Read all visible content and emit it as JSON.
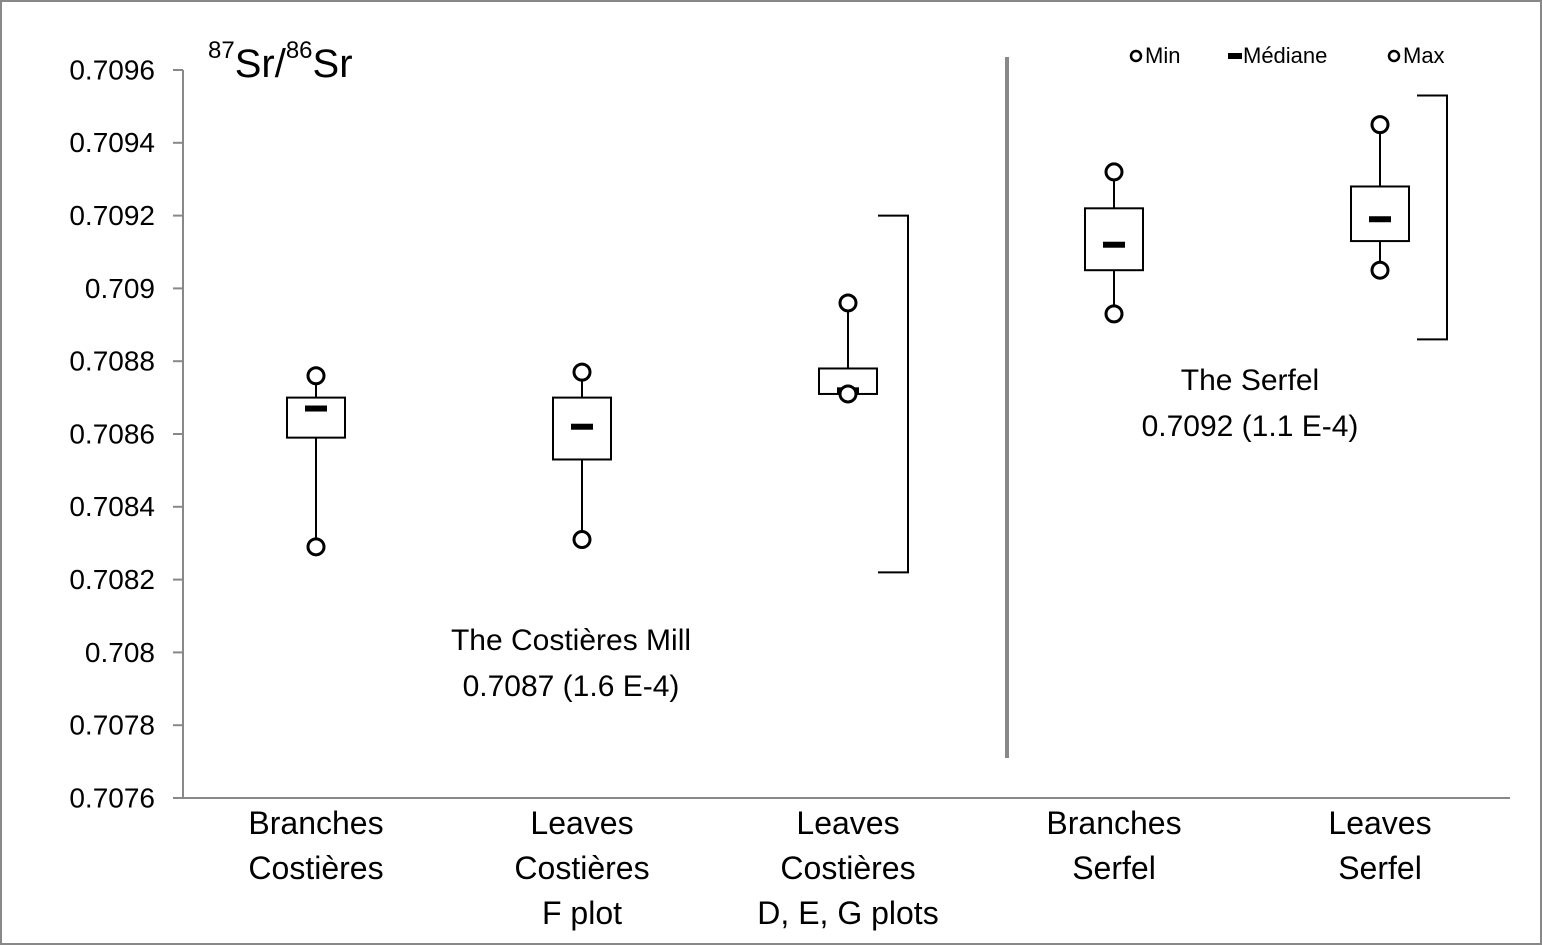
{
  "chart_data": {
    "type": "box",
    "ylabel": [
      "87",
      "Sr/",
      "86",
      "Sr"
    ],
    "categories": [
      "Branches\nCostières",
      "Leaves\nCostières\nF plot",
      "Leaves\nCostières\nD, E, G plots",
      "Branches\nSerfel",
      "Leaves\nSerfel"
    ],
    "boxes": [
      {
        "min": 0.70829,
        "q1": 0.70859,
        "median": 0.70867,
        "q3": 0.7087,
        "max": 0.70876
      },
      {
        "min": 0.70831,
        "q1": 0.70853,
        "median": 0.70862,
        "q3": 0.7087,
        "max": 0.70877
      },
      {
        "min": 0.70871,
        "q1": 0.70871,
        "median": 0.70872,
        "q3": 0.70878,
        "max": 0.70896
      },
      {
        "min": 0.70893,
        "q1": 0.70905,
        "median": 0.70912,
        "q3": 0.70922,
        "max": 0.70932
      },
      {
        "min": 0.70905,
        "q1": 0.70913,
        "median": 0.70919,
        "q3": 0.70928,
        "max": 0.70945
      }
    ],
    "legend": [
      "Min",
      "Médiane",
      "Max"
    ],
    "brackets": [
      {
        "low": 0.70822,
        "high": 0.7092,
        "lines": [
          "The Costières Mill",
          "0.7087 (1.6 E-4)"
        ]
      },
      {
        "low": 0.70886,
        "high": 0.70953,
        "lines": [
          "The Serfel",
          "0.7092 (1.1 E-4)"
        ]
      }
    ],
    "ylim": [
      0.7076,
      0.7096
    ],
    "yticks": [
      0.7076,
      0.7078,
      0.708,
      0.7082,
      0.7084,
      0.7086,
      0.7088,
      0.709,
      0.7092,
      0.7094,
      0.7096
    ],
    "color": "#000000"
  }
}
